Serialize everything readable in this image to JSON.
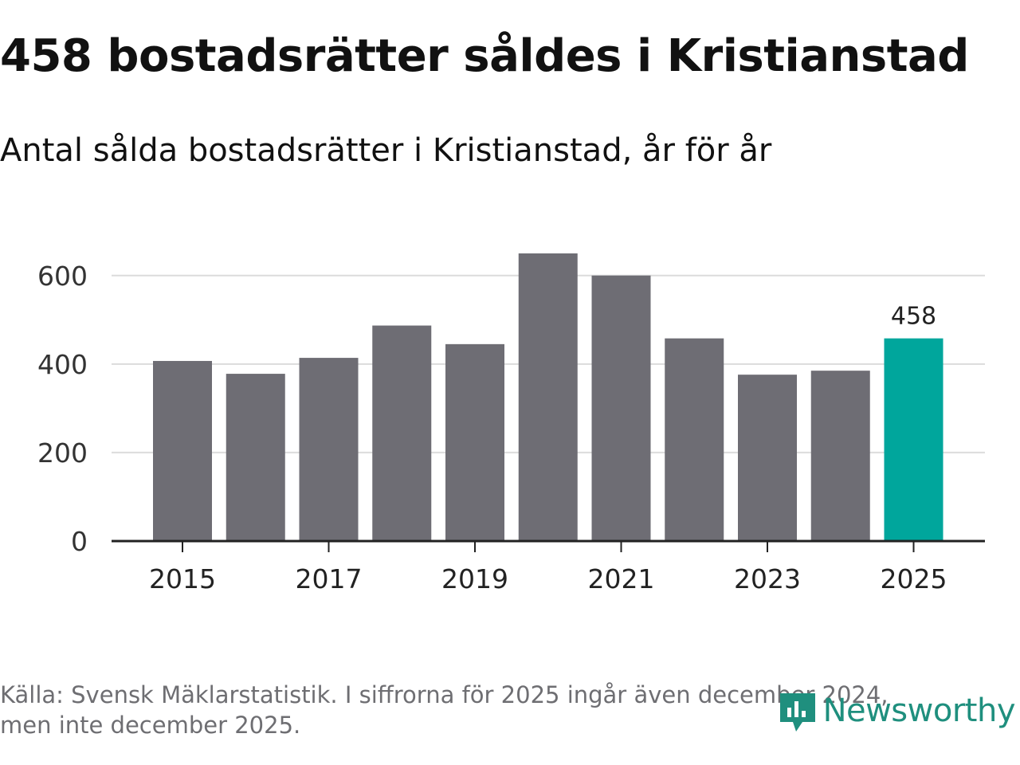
{
  "title": "458 bostadsrätter såldes i Kristianstad",
  "subtitle": "Antal sålda bostadsrätter i Kristianstad, år för år",
  "source_line1": "Källa: Svensk Mäklarstatistik. I siffrorna för 2025 ingår även december 2024,",
  "source_line2": "men inte december 2025.",
  "logo_text": "Newsworthy",
  "colors": {
    "bar": "#6e6d74",
    "highlight": "#00a69c",
    "axis": "#222222",
    "grid": "#dcdcdc",
    "logo": "#1f8f7e"
  },
  "chart_data": {
    "type": "bar",
    "title": "458 bostadsrätter såldes i Kristianstad",
    "subtitle": "Antal sålda bostadsrätter i Kristianstad, år för år",
    "categories": [
      "2015",
      "2016",
      "2017",
      "2018",
      "2019",
      "2020",
      "2021",
      "2022",
      "2023",
      "2024",
      "2025"
    ],
    "values": [
      407,
      378,
      414,
      487,
      445,
      650,
      600,
      458,
      376,
      385,
      458
    ],
    "highlight_index": 10,
    "highlight_label": "458",
    "x_tick_labels": [
      "2015",
      "2017",
      "2019",
      "2021",
      "2023",
      "2025"
    ],
    "y_ticks": [
      0,
      200,
      400,
      600
    ],
    "ylim": [
      0,
      650
    ],
    "xlabel": "",
    "ylabel": "",
    "grid": true
  }
}
